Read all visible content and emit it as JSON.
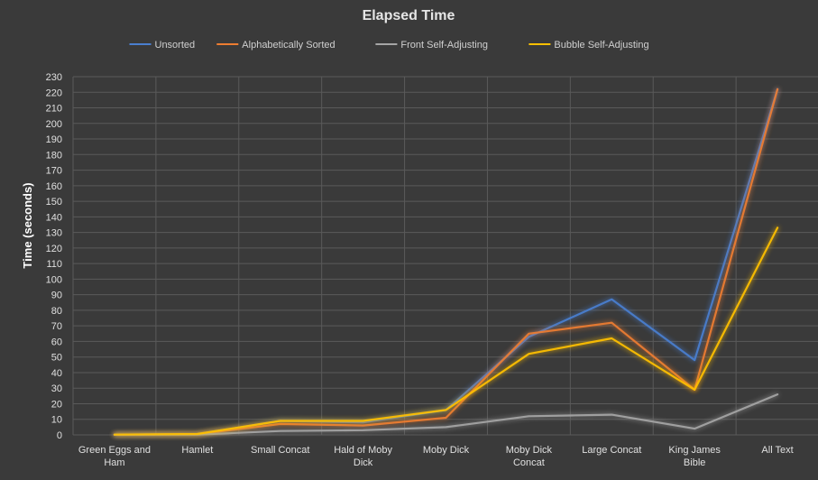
{
  "chart_data": {
    "type": "line",
    "title": "Elapsed Time",
    "xlabel": "",
    "ylabel": "Time (seconds)",
    "ylim": [
      0,
      230
    ],
    "ytick_step": 10,
    "grid": true,
    "legend_position": "top",
    "categories": [
      "Green Eggs and Ham",
      "Hamlet",
      "Small Concat",
      "Hald of Moby Dick",
      "Moby Dick",
      "Moby Dick Concat",
      "Large Concat",
      "King James Bible",
      "All Text"
    ],
    "series": [
      {
        "name": "Unsorted",
        "color": "#4a7fd0",
        "values": [
          0.2,
          0.5,
          9,
          8,
          16,
          63,
          87,
          48,
          222
        ]
      },
      {
        "name": "Alphabetically Sorted",
        "color": "#ed7d31",
        "values": [
          0.2,
          0.4,
          7,
          6,
          11,
          65,
          72,
          29,
          222
        ]
      },
      {
        "name": "Front Self-Adjusting",
        "color": "#a5a5a5",
        "values": [
          0.1,
          0.2,
          2.5,
          3,
          5,
          12,
          13,
          4,
          26
        ]
      },
      {
        "name": "Bubble Self-Adjusting",
        "color": "#ffc000",
        "values": [
          0.2,
          0.6,
          9,
          9,
          16,
          52,
          62,
          29,
          133
        ]
      }
    ]
  }
}
